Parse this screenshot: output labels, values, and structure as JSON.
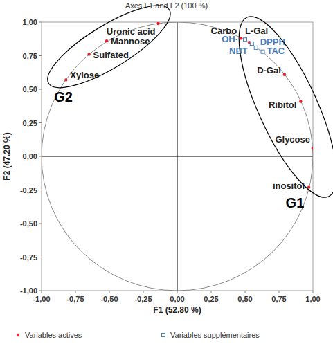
{
  "chart_data": {
    "type": "scatter",
    "title": "Axes F1 and F2 (100 %)",
    "x_label": "F1 (52.80 %)",
    "y_label": "F2 (47.20 %)",
    "xlim": [
      -1,
      1
    ],
    "ylim": [
      -1,
      1
    ],
    "xticks": [
      {
        "value": -1,
        "label": "-1,00"
      },
      {
        "value": -0.75,
        "label": "-0,75"
      },
      {
        "value": -0.5,
        "label": "-0,50"
      },
      {
        "value": -0.25,
        "label": "-0,25"
      },
      {
        "value": 0,
        "label": "0,00"
      },
      {
        "value": 0.25,
        "label": "0,25"
      },
      {
        "value": 0.5,
        "label": "0,50"
      },
      {
        "value": 0.75,
        "label": "0,75"
      },
      {
        "value": 1,
        "label": "1,00"
      }
    ],
    "yticks": [
      {
        "value": -1,
        "label": "-1,00"
      },
      {
        "value": -0.75,
        "label": "-0,75"
      },
      {
        "value": -0.5,
        "label": "-0,50"
      },
      {
        "value": -0.25,
        "label": "-0,25"
      },
      {
        "value": 0,
        "label": "0,00"
      },
      {
        "value": 0.25,
        "label": "0,25"
      },
      {
        "value": 0.5,
        "label": "0,50"
      },
      {
        "value": 0.75,
        "label": "0,75"
      },
      {
        "value": 1,
        "label": "1,00"
      }
    ],
    "grid": false,
    "legend": "bottom",
    "series": [
      {
        "name": "Variables actives",
        "color": "#e8202a",
        "marker": "circle",
        "labels": [
          "Uronic acid",
          "Mannose",
          "Sulfated",
          "Xylose",
          "Carbo",
          "L-Gal",
          "D-Gal",
          "Ribitol",
          "Glycose",
          "inositol"
        ],
        "x": [
          -0.14,
          -0.52,
          -0.65,
          -0.82,
          0.47,
          0.53,
          0.79,
          0.91,
          1.0,
          0.97
        ],
        "values": [
          0.99,
          0.86,
          0.76,
          0.57,
          0.88,
          0.85,
          0.61,
          0.41,
          0.06,
          -0.23
        ]
      },
      {
        "name": "Variables supplémentaires",
        "color": "#4a7ebb",
        "marker": "square",
        "labels": [
          "OH·",
          "NBT",
          "DPPH",
          "TAC"
        ],
        "x": [
          0.5,
          0.55,
          0.58,
          0.63
        ],
        "values": [
          0.87,
          0.84,
          0.81,
          0.78
        ]
      }
    ],
    "groups": [
      {
        "label": "G2",
        "members": [
          "Uronic acid",
          "Mannose",
          "Sulfated",
          "Xylose"
        ]
      },
      {
        "label": "G1",
        "members": [
          "Carbo",
          "L-Gal",
          "D-Gal",
          "Ribitol",
          "Glycose",
          "inositol",
          "OH·",
          "NBT",
          "DPPH",
          "TAC"
        ]
      }
    ]
  }
}
